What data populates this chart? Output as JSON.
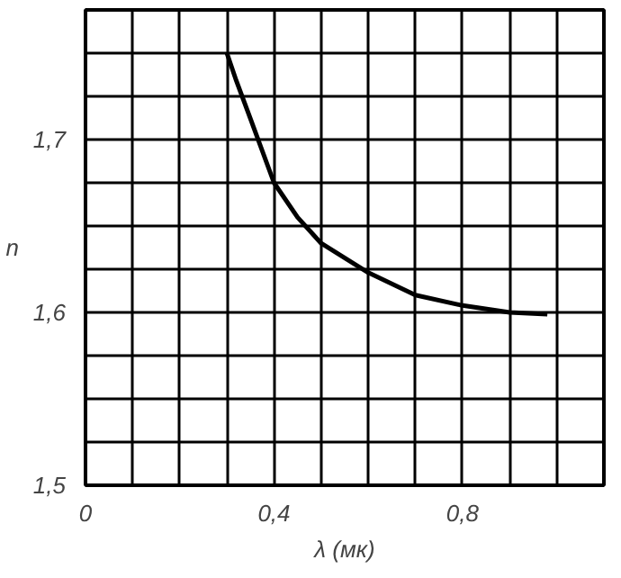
{
  "chart_data": {
    "type": "line",
    "xlabel": "λ (мк)",
    "ylabel": "n",
    "x": [
      0.3,
      0.32,
      0.35,
      0.4,
      0.45,
      0.5,
      0.6,
      0.7,
      0.8,
      0.9,
      0.98
    ],
    "series": [
      {
        "color": "#000000",
        "values": [
          1.75,
          1.734,
          1.712,
          1.675,
          1.655,
          1.64,
          1.623,
          1.61,
          1.604,
          1.6,
          1.599
        ]
      }
    ],
    "xlim": [
      0,
      1.1
    ],
    "ylim": [
      1.5,
      1.775
    ],
    "xticks": [
      {
        "value": 0,
        "label": "0"
      },
      {
        "value": 0.1,
        "label": null
      },
      {
        "value": 0.2,
        "label": null
      },
      {
        "value": 0.3,
        "label": null
      },
      {
        "value": 0.4,
        "label": "0,4"
      },
      {
        "value": 0.5,
        "label": null
      },
      {
        "value": 0.6,
        "label": null
      },
      {
        "value": 0.7,
        "label": null
      },
      {
        "value": 0.8,
        "label": "0,8"
      },
      {
        "value": 0.9,
        "label": null
      },
      {
        "value": 1.0,
        "label": null
      },
      {
        "value": 1.1,
        "label": null
      }
    ],
    "yticks": [
      {
        "value": 1.5,
        "label": "1,5"
      },
      {
        "value": 1.525,
        "label": null
      },
      {
        "value": 1.55,
        "label": null
      },
      {
        "value": 1.575,
        "label": null
      },
      {
        "value": 1.6,
        "label": "1,6"
      },
      {
        "value": 1.625,
        "label": null
      },
      {
        "value": 1.65,
        "label": null
      },
      {
        "value": 1.675,
        "label": null
      },
      {
        "value": 1.7,
        "label": "1,7"
      },
      {
        "value": 1.725,
        "label": null
      },
      {
        "value": 1.75,
        "label": null
      },
      {
        "value": 1.775,
        "label": null
      }
    ],
    "grid": true,
    "marker": "none",
    "line_style": "solid"
  }
}
